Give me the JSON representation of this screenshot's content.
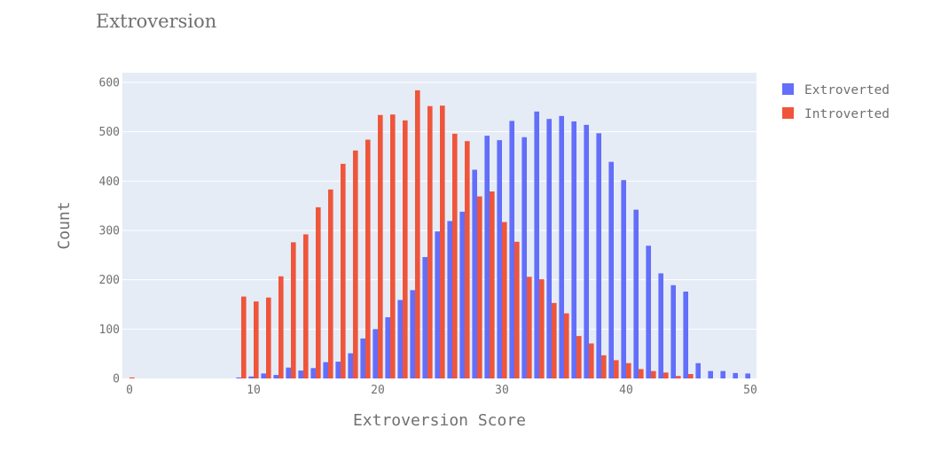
{
  "chart_data": {
    "type": "bar",
    "title": "Extroversion",
    "xlabel": "Extroversion Score",
    "ylabel": "Count",
    "xlim": [
      0,
      50
    ],
    "ylim": [
      0,
      600
    ],
    "xticks": [
      "0",
      "10",
      "20",
      "30",
      "40",
      "50"
    ],
    "yticks": [
      "0",
      "100",
      "200",
      "300",
      "400",
      "500",
      "600"
    ],
    "grid": true,
    "legend_position": "top-right",
    "x": [
      0,
      1,
      2,
      3,
      4,
      5,
      6,
      7,
      8,
      9,
      10,
      11,
      12,
      13,
      14,
      15,
      16,
      17,
      18,
      19,
      20,
      21,
      22,
      23,
      24,
      25,
      26,
      27,
      28,
      29,
      30,
      31,
      32,
      33,
      34,
      35,
      36,
      37,
      38,
      39,
      40,
      41,
      42,
      43,
      44,
      45,
      46,
      47,
      48,
      49,
      50
    ],
    "series": [
      {
        "name": "Extroverted",
        "color": "#636efa",
        "values": [
          0,
          0,
          0,
          0,
          0,
          0,
          0,
          0,
          0,
          2,
          4,
          10,
          7,
          22,
          16,
          21,
          33,
          34,
          51,
          81,
          100,
          124,
          159,
          179,
          246,
          298,
          319,
          338,
          423,
          492,
          483,
          522,
          489,
          541,
          526,
          532,
          521,
          514,
          497,
          439,
          402,
          342,
          269,
          213,
          189,
          176,
          31,
          15,
          15,
          11,
          10
        ]
      },
      {
        "name": "Introverted",
        "color": "#ef553b",
        "values": [
          2,
          0,
          0,
          0,
          0,
          0,
          0,
          0,
          0,
          166,
          156,
          164,
          207,
          276,
          292,
          347,
          383,
          435,
          462,
          484,
          534,
          535,
          523,
          584,
          552,
          553,
          496,
          481,
          369,
          379,
          317,
          277,
          206,
          201,
          153,
          132,
          86,
          71,
          47,
          37,
          31,
          19,
          15,
          12,
          5,
          9,
          0,
          0,
          0,
          0,
          0
        ]
      }
    ]
  }
}
